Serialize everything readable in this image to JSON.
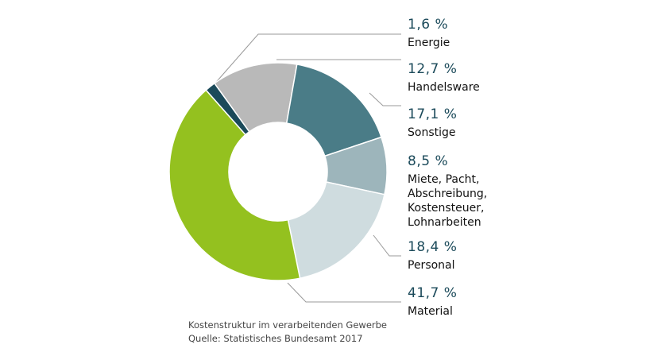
{
  "chart_data": {
    "type": "donut",
    "categories": [
      "Energie",
      "Handelsware",
      "Sonstige",
      "Miete, Pacht,\nAbschreibung,\nKostensteuer,\nLohnarbeiten",
      "Personal",
      "Material"
    ],
    "values": [
      1.6,
      12.7,
      17.1,
      8.5,
      18.4,
      41.7
    ],
    "value_labels": [
      "1,6 %",
      "12,7 %",
      "17,1 %",
      "8,5 %",
      "18,4 %",
      "41,7 %"
    ],
    "colors": [
      "#1b4a5a",
      "#b9b9b9",
      "#4a7c87",
      "#9db5bb",
      "#cfdcdf",
      "#94c11f"
    ],
    "title": "Kostenstruktur im verarbeitenden Gewerbe",
    "source": "Quelle: Statistisches Bundesamt 2017"
  }
}
